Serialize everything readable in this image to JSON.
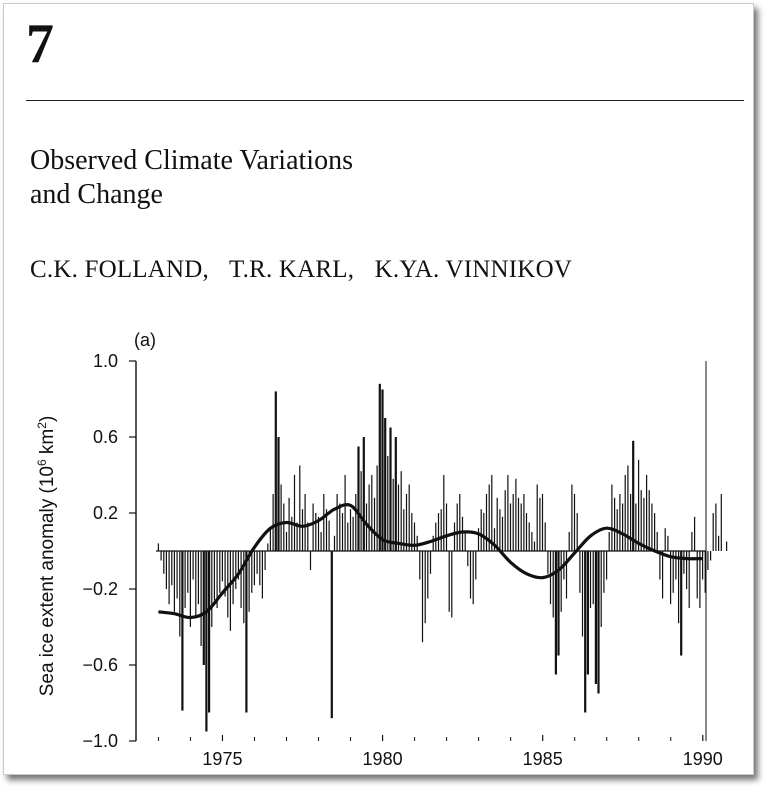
{
  "chapter": {
    "number": "7",
    "title_lines": [
      "Observed Climate Variations",
      "and Change"
    ],
    "authors": [
      "C.K. FOLLAND,",
      "T.R. KARL,",
      "K.YA. VINNIKOV"
    ]
  },
  "chart_data": {
    "type": "bar",
    "panel_label": "(a)",
    "title": "",
    "xlabel": "",
    "ylabel_parts": [
      "Sea ice extent anomaly (10",
      "6",
      " km",
      "2",
      ")"
    ],
    "xlim": [
      1972.3,
      1990.1
    ],
    "ylim": [
      -1.0,
      1.0
    ],
    "y_ticks": [
      -1.0,
      -0.6,
      -0.2,
      0.2,
      0.6,
      1.0
    ],
    "y_tick_labels": [
      "−1.0",
      "−0.6",
      "−0.2",
      "0.2",
      "0.6",
      "1.0"
    ],
    "x_ticks": [
      1975,
      1980,
      1985,
      1990
    ],
    "x_tick_labels": [
      "1975",
      "1980",
      "1985",
      "1990"
    ],
    "grid": false,
    "legend": "none",
    "bars": {
      "description_start": 1973.0,
      "step_years": 0.0833,
      "values": [
        0.04,
        -0.05,
        -0.12,
        -0.2,
        -0.28,
        -0.18,
        -0.32,
        -0.25,
        -0.45,
        -0.84,
        -0.3,
        -0.22,
        -0.4,
        -0.15,
        -0.35,
        -0.28,
        -0.5,
        -0.6,
        -0.95,
        -0.85,
        -0.4,
        -0.26,
        -0.3,
        -0.22,
        -0.16,
        -0.24,
        -0.35,
        -0.42,
        -0.28,
        -0.2,
        -0.15,
        -0.3,
        -0.38,
        -0.85,
        -0.32,
        -0.22,
        -0.18,
        -0.12,
        -0.18,
        -0.25,
        -0.1,
        0.04,
        0.12,
        0.3,
        0.84,
        0.6,
        0.35,
        0.25,
        0.1,
        0.28,
        0.18,
        0.4,
        0.15,
        0.45,
        0.22,
        0.3,
        0.15,
        -0.1,
        0.25,
        0.2,
        0.18,
        0.1,
        0.3,
        0.22,
        0.16,
        -0.88,
        0.08,
        0.3,
        0.25,
        0.2,
        0.4,
        0.15,
        0.22,
        0.18,
        0.3,
        0.55,
        0.42,
        0.6,
        0.25,
        0.35,
        0.4,
        0.28,
        0.45,
        0.88,
        0.85,
        0.7,
        0.5,
        0.65,
        0.38,
        0.6,
        0.35,
        0.42,
        0.22,
        0.3,
        0.35,
        0.2,
        0.15,
        0.08,
        -0.15,
        -0.48,
        -0.38,
        -0.25,
        -0.12,
        0.08,
        0.15,
        0.2,
        0.22,
        0.4,
        0.25,
        -0.32,
        -0.35,
        0.15,
        0.25,
        0.3,
        0.18,
        0.1,
        -0.08,
        -0.25,
        -0.28,
        -0.15,
        0.12,
        0.22,
        0.2,
        0.3,
        0.35,
        0.4,
        0.12,
        0.28,
        0.22,
        0.18,
        0.32,
        0.4,
        0.25,
        0.3,
        0.38,
        0.28,
        0.25,
        0.3,
        0.2,
        0.15,
        0.1,
        0.05,
        0.35,
        0.28,
        0.3,
        0.15,
        -0.12,
        -0.28,
        -0.35,
        -0.65,
        -0.55,
        -0.32,
        -0.15,
        -0.25,
        0.1,
        0.35,
        0.3,
        0.2,
        -0.22,
        -0.45,
        -0.85,
        -0.65,
        -0.3,
        -0.28,
        -0.7,
        -0.75,
        -0.4,
        -0.22,
        -0.15,
        0.1,
        0.35,
        0.28,
        0.22,
        0.3,
        0.25,
        0.4,
        0.45,
        0.3,
        0.58,
        0.25,
        0.48,
        0.32,
        0.28,
        0.4,
        0.32,
        0.25,
        0.2,
        0.1,
        -0.15,
        -0.25,
        0.12,
        0.08,
        -0.28,
        -0.22,
        -0.15,
        -0.38,
        -0.55,
        -0.12,
        -0.2,
        -0.3,
        0.1,
        0.18,
        -0.25,
        -0.3,
        -0.15,
        -0.22,
        -0.1,
        -0.05,
        0.2,
        0.25,
        0.08,
        0.3,
        0.0,
        0.05
      ]
    },
    "smooth_line": {
      "x": [
        1973.0,
        1973.5,
        1974.0,
        1974.5,
        1975.0,
        1975.5,
        1976.0,
        1976.5,
        1977.0,
        1977.5,
        1978.0,
        1978.5,
        1979.0,
        1979.5,
        1980.0,
        1980.5,
        1981.0,
        1981.5,
        1982.0,
        1982.5,
        1983.0,
        1983.5,
        1984.0,
        1984.5,
        1985.0,
        1985.5,
        1986.0,
        1986.5,
        1987.0,
        1987.5,
        1988.0,
        1988.5,
        1989.0,
        1989.5,
        1990.0
      ],
      "y": [
        -0.32,
        -0.33,
        -0.35,
        -0.32,
        -0.22,
        -0.12,
        0.02,
        0.12,
        0.15,
        0.13,
        0.16,
        0.22,
        0.24,
        0.14,
        0.06,
        0.04,
        0.03,
        0.05,
        0.08,
        0.1,
        0.09,
        0.03,
        -0.06,
        -0.12,
        -0.14,
        -0.1,
        -0.01,
        0.08,
        0.12,
        0.09,
        0.04,
        0.0,
        -0.03,
        -0.04,
        -0.04
      ]
    }
  }
}
